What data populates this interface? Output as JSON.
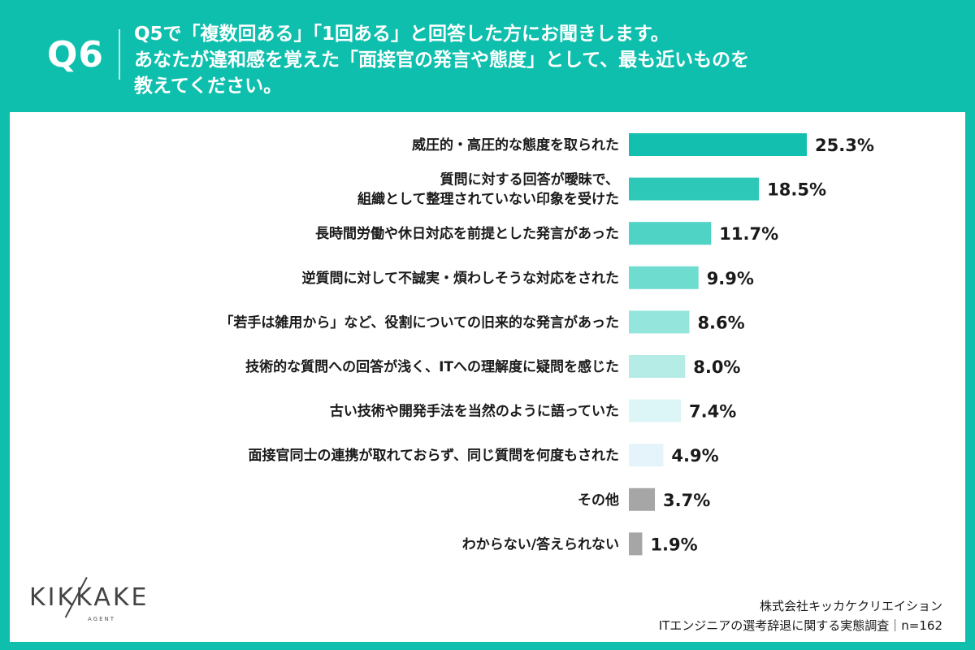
{
  "header": {
    "question_label": "Q6",
    "question_lines": [
      "Q5で「複数回ある」「1回ある」と回答した方にお聞きします。",
      "あなたが違和感を覚えた「面接官の発言や態度」として、最も近いものを",
      "教えてください。"
    ]
  },
  "chart_data": {
    "type": "bar",
    "orientation": "horizontal",
    "categories": [
      [
        "威圧的・高圧的な態度を取られた"
      ],
      [
        "質問に対する回答が曖昧で、",
        "組織として整理されていない印象を受けた"
      ],
      [
        "長時間労働や休日対応を前提とした発言があった"
      ],
      [
        "逆質問に対して不誠実・煩わしそうな対応をされた"
      ],
      [
        "「若手は雑用から」など、役割についての旧来的な発言があった"
      ],
      [
        "技術的な質問への回答が浅く、ITへの理解度に疑問を感じた"
      ],
      [
        "古い技術や開発手法を当然のように語っていた"
      ],
      [
        "面接官同士の連携が取れておらず、同じ質問を何度もされた"
      ],
      [
        "その他"
      ],
      [
        "わからない/答えられない"
      ]
    ],
    "values": [
      25.3,
      18.5,
      11.7,
      9.9,
      8.6,
      8.0,
      7.4,
      4.9,
      3.7,
      1.9
    ],
    "value_labels": [
      "25.3%",
      "18.5%",
      "11.7%",
      "9.9%",
      "8.6%",
      "8.0%",
      "7.4%",
      "4.9%",
      "3.7%",
      "1.9%"
    ],
    "colors": [
      "#13bfae",
      "#2ec8b8",
      "#4fd3c5",
      "#6fdcd0",
      "#94e5dc",
      "#b6ece6",
      "#dcf5f6",
      "#e4f4fa",
      "#a6a6a6",
      "#a6a6a6"
    ],
    "xlim": [
      0,
      25.3
    ]
  },
  "footer": {
    "logo_text": "KIKKAKE",
    "logo_sub": "AGENT",
    "source_line1": "株式会社キッカケクリエイション",
    "source_line2": "ITエンジニアの選考辞退に関する実態調査｜n=162"
  }
}
